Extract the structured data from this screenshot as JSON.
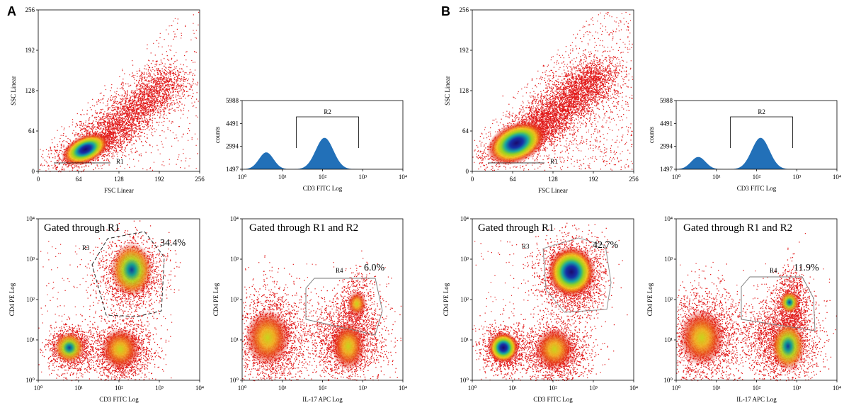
{
  "figure": {
    "panels": [
      {
        "letter": "A",
        "scatter_fsc_ssc": {
          "type": "scatter",
          "xlabel": "FSC Linear",
          "ylabel": "SSC Linear",
          "xticks": [
            "0",
            "64",
            "128",
            "192",
            "256"
          ],
          "yticks": [
            "0",
            "64",
            "128",
            "192",
            "256"
          ],
          "xlim": [
            0,
            256
          ],
          "ylim": [
            0,
            256
          ],
          "gate_label": "R1",
          "population_center": [
            75,
            35
          ]
        },
        "histogram_cd3": {
          "type": "area",
          "xlabel": "CD3 FITC Log",
          "ylabel": "counts",
          "yticks": [
            "1497",
            "2994",
            "4491",
            "5988"
          ],
          "xticks": [
            "10⁰",
            "10¹",
            "10²",
            "10³",
            "10⁴"
          ],
          "ylim": [
            1497,
            5988
          ],
          "gate_label": "R2",
          "peaks": [
            {
              "log_x": 0.6,
              "height": 2600
            },
            {
              "log_x": 2.05,
              "height": 3550
            }
          ]
        },
        "scatter_r1": {
          "type": "scatter",
          "title": "Gated through R1",
          "xlabel": "CD3 FITC Log",
          "ylabel": "CD4 PE Log",
          "xticks": [
            "10⁰",
            "10¹",
            "10²",
            "10³",
            "10⁴"
          ],
          "yticks": [
            "10⁰",
            "10¹",
            "10²",
            "10³",
            "10⁴"
          ],
          "gate_label": "R3",
          "percent": "34.4%"
        },
        "scatter_r1_r2": {
          "type": "scatter",
          "title": "Gated through R1 and R2",
          "xlabel": "IL-17 APC Log",
          "ylabel": "CD4 PE Log",
          "xticks": [
            "10⁰",
            "10¹",
            "10²",
            "10³",
            "10⁴"
          ],
          "yticks": [
            "10⁰",
            "10¹",
            "10²",
            "10³",
            "10⁴"
          ],
          "gate_label": "R4",
          "percent": "6.0%"
        }
      },
      {
        "letter": "B",
        "scatter_fsc_ssc": {
          "type": "scatter",
          "xlabel": "FSC Linear",
          "ylabel": "SSC Linear",
          "xticks": [
            "0",
            "64",
            "128",
            "192",
            "256"
          ],
          "yticks": [
            "0",
            "64",
            "128",
            "192",
            "256"
          ],
          "xlim": [
            0,
            256
          ],
          "ylim": [
            0,
            256
          ],
          "gate_label": "R1",
          "population_center": [
            70,
            45
          ]
        },
        "histogram_cd3": {
          "type": "area",
          "xlabel": "CD3 FITC Log",
          "ylabel": "counts",
          "yticks": [
            "1497",
            "2994",
            "4491",
            "5988"
          ],
          "xticks": [
            "10⁰",
            "10¹",
            "10²",
            "10³",
            "10⁴"
          ],
          "ylim": [
            1497,
            5988
          ],
          "gate_label": "R2",
          "peaks": [
            {
              "log_x": 0.55,
              "height": 2300
            },
            {
              "log_x": 2.1,
              "height": 3550
            }
          ]
        },
        "scatter_r1": {
          "type": "scatter",
          "title": "Gated through R1",
          "xlabel": "CD3 FITC Log",
          "ylabel": "CD4 PE Log",
          "xticks": [
            "10⁰",
            "10¹",
            "10²",
            "10³",
            "10⁴"
          ],
          "yticks": [
            "10⁰",
            "10¹",
            "10²",
            "10³",
            "10⁴"
          ],
          "gate_label": "R3",
          "percent": "42.7%"
        },
        "scatter_r1_r2": {
          "type": "scatter",
          "title": "Gated through R1 and R2",
          "xlabel": "IL-17 APC Log",
          "ylabel": "CD4 PE Log",
          "xticks": [
            "10⁰",
            "10¹",
            "10²",
            "10³",
            "10⁴"
          ],
          "yticks": [
            "10⁰",
            "10¹",
            "10²",
            "10³",
            "10⁴"
          ],
          "gate_label": "R4",
          "percent": "11.9%"
        }
      }
    ]
  },
  "chart_data": [
    {
      "type": "scatter",
      "panel": "A",
      "title": "",
      "xlabel": "FSC Linear",
      "ylabel": "SSC Linear",
      "xlim": [
        0,
        256
      ],
      "ylim": [
        0,
        256
      ],
      "gate": "R1"
    },
    {
      "type": "area",
      "panel": "A",
      "title": "",
      "xlabel": "CD3 FITC Log",
      "ylabel": "counts",
      "ylim": [
        1497,
        5988
      ],
      "gate": "R2"
    },
    {
      "type": "scatter",
      "panel": "A",
      "title": "Gated through R1",
      "xlabel": "CD3 FITC Log",
      "ylabel": "CD4 PE Log",
      "gate": "R3",
      "percent": 34.4
    },
    {
      "type": "scatter",
      "panel": "A",
      "title": "Gated through R1 and R2",
      "xlabel": "IL-17 APC Log",
      "ylabel": "CD4 PE Log",
      "gate": "R4",
      "percent": 6.0
    },
    {
      "type": "scatter",
      "panel": "B",
      "title": "",
      "xlabel": "FSC Linear",
      "ylabel": "SSC Linear",
      "xlim": [
        0,
        256
      ],
      "ylim": [
        0,
        256
      ],
      "gate": "R1"
    },
    {
      "type": "area",
      "panel": "B",
      "title": "",
      "xlabel": "CD3 FITC Log",
      "ylabel": "counts",
      "ylim": [
        1497,
        5988
      ],
      "gate": "R2"
    },
    {
      "type": "scatter",
      "panel": "B",
      "title": "Gated through R1",
      "xlabel": "CD3 FITC Log",
      "ylabel": "CD4 PE Log",
      "gate": "R3",
      "percent": 42.7
    },
    {
      "type": "scatter",
      "panel": "B",
      "title": "Gated through R1 and R2",
      "xlabel": "IL-17 APC Log",
      "ylabel": "CD4 PE Log",
      "gate": "R4",
      "percent": 11.9
    }
  ]
}
